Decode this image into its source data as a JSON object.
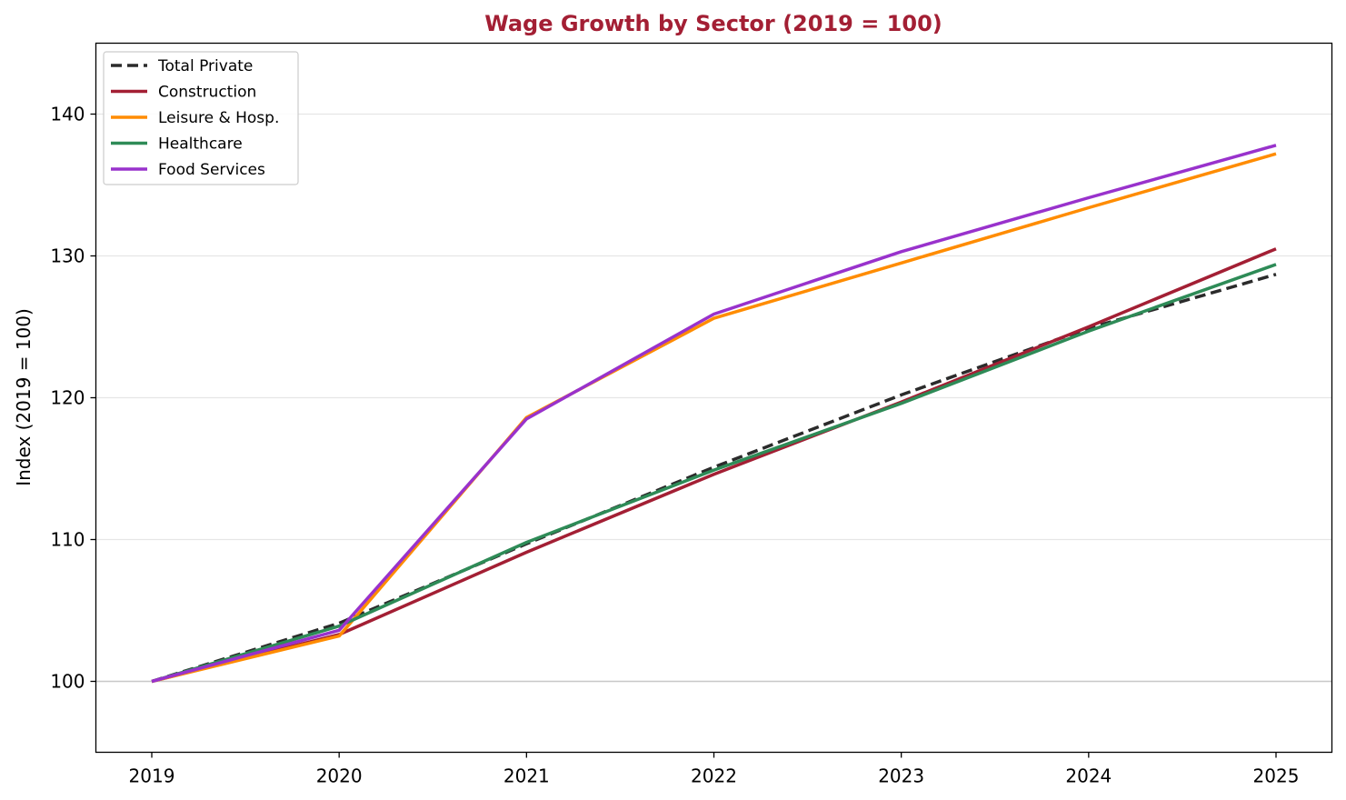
{
  "chart_data": {
    "type": "line",
    "title": "Wage Growth by Sector (2019 = 100)",
    "title_color": "#a31f34",
    "xlabel": "",
    "ylabel": "Index (2019 = 100)",
    "x": [
      "2019",
      "2020",
      "2021",
      "2022",
      "2023",
      "2024",
      "2025"
    ],
    "ylim": [
      95,
      145
    ],
    "yticks": [
      100,
      110,
      120,
      130,
      140
    ],
    "grid": "horizontal",
    "reference_line": 100,
    "legend_position": "top-left",
    "series": [
      {
        "name": "Total Private",
        "color": "#2b2b2b",
        "dashed": true,
        "values": [
          100,
          104.1,
          109.7,
          115.1,
          120.2,
          124.9,
          128.7
        ]
      },
      {
        "name": "Construction",
        "color": "#a31f34",
        "dashed": false,
        "values": [
          100,
          103.3,
          109.1,
          114.6,
          119.7,
          125.0,
          130.5
        ]
      },
      {
        "name": "Leisure & Hosp.",
        "color": "#ff8c00",
        "dashed": false,
        "values": [
          100,
          103.2,
          118.6,
          125.6,
          129.5,
          133.4,
          137.2
        ]
      },
      {
        "name": "Healthcare",
        "color": "#2e8b57",
        "dashed": false,
        "values": [
          100,
          103.9,
          109.8,
          114.9,
          119.6,
          124.7,
          129.4
        ]
      },
      {
        "name": "Food Services",
        "color": "#9932cc",
        "dashed": false,
        "values": [
          100,
          103.6,
          118.5,
          125.9,
          130.3,
          134.1,
          137.8
        ]
      }
    ]
  }
}
